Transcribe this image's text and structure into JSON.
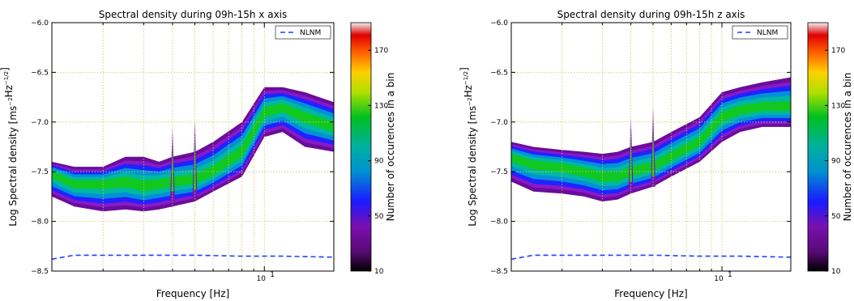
{
  "panels": [
    {
      "title": "Spectral density during 09h-15h x axis",
      "xlabel": "Frequency [Hz]",
      "ylabel": "Log Spectral density [ms⁻²Hz⁻¹ᐟ²]",
      "ylabel_plain": "Log Spectral density [ms",
      "ylabel_sup1": "−2",
      "ylabel_mid": "Hz",
      "ylabel_sup2": "−1/2",
      "ylabel_end": "]",
      "xtick_label": "10",
      "xtick_exp": "1",
      "colorbar_label": "Number of occurences in a bin"
    },
    {
      "title": "Spectral density during 09h-15h z axis",
      "xlabel": "Frequency [Hz]",
      "ylabel": "Log Spectral density [ms⁻²Hz⁻¹ᐟ²]",
      "ylabel_plain": "Log Spectral density [ms",
      "ylabel_sup1": "−2",
      "ylabel_mid": "Hz",
      "ylabel_sup2": "−1/2",
      "ylabel_end": "]",
      "xtick_label": "10",
      "xtick_exp": "1",
      "colorbar_label": "Number of occurences in a bin"
    }
  ],
  "legend_label": "NLNM",
  "ytick_labels": [
    "−6.0",
    "−6.5",
    "−7.0",
    "−7.5",
    "−8.0",
    "−8.5"
  ],
  "colorbar_ticks": [
    "170",
    "130",
    "90",
    "50",
    "10"
  ],
  "colors": {
    "nlnm": "#1f3fff",
    "grid": "#c8c85a"
  },
  "chart_data": [
    {
      "type": "heatmap",
      "title": "Spectral density during 09h-15h x axis",
      "xlabel": "Frequency [Hz]",
      "ylabel": "Log Spectral density [ms-2Hz-1/2]",
      "x_scale": "log",
      "xlim": [
        1.2,
        20
      ],
      "ylim": [
        -8.5,
        -6.0
      ],
      "yticks": [
        -6.0,
        -6.5,
        -7.0,
        -7.5,
        -8.0,
        -8.5
      ],
      "xticks": [
        10
      ],
      "colorbar": {
        "label": "Number of occurences in a bin",
        "range": [
          10,
          190
        ],
        "ticks": [
          10,
          50,
          90,
          130,
          170
        ]
      },
      "grid": true,
      "legend": {
        "entries": [
          "NLNM"
        ],
        "position": "top-right"
      },
      "series": [
        {
          "name": "NLNM",
          "style": "dashed",
          "x": [
            1.2,
            1.5,
            2,
            3,
            5,
            8,
            12,
            20
          ],
          "y": [
            -8.38,
            -8.34,
            -8.34,
            -8.34,
            -8.34,
            -8.35,
            -8.35,
            -8.36
          ]
        }
      ],
      "density_band": {
        "x": [
          1.2,
          1.5,
          2,
          2.5,
          3,
          3.5,
          4,
          5,
          6,
          8,
          10,
          12,
          15,
          20
        ],
        "mode_y": [
          -7.52,
          -7.62,
          -7.62,
          -7.6,
          -7.65,
          -7.62,
          -7.6,
          -7.58,
          -7.5,
          -7.3,
          -6.9,
          -6.85,
          -6.95,
          -7.05
        ],
        "lower_y": [
          -7.75,
          -7.85,
          -7.9,
          -7.88,
          -7.9,
          -7.88,
          -7.85,
          -7.8,
          -7.7,
          -7.55,
          -7.15,
          -7.1,
          -7.25,
          -7.3
        ],
        "upper_y": [
          -7.4,
          -7.45,
          -7.45,
          -7.35,
          -7.35,
          -7.4,
          -7.35,
          -7.3,
          -7.2,
          -7.0,
          -6.65,
          -6.65,
          -6.7,
          -6.8
        ]
      }
    },
    {
      "type": "heatmap",
      "title": "Spectral density during 09h-15h z axis",
      "xlabel": "Frequency [Hz]",
      "ylabel": "Log Spectral density [ms-2Hz-1/2]",
      "x_scale": "log",
      "xlim": [
        1.2,
        20
      ],
      "ylim": [
        -8.5,
        -6.0
      ],
      "yticks": [
        -6.0,
        -6.5,
        -7.0,
        -7.5,
        -8.0,
        -8.5
      ],
      "xticks": [
        10
      ],
      "colorbar": {
        "label": "Number of occurences in a bin",
        "range": [
          10,
          190
        ],
        "ticks": [
          10,
          50,
          90,
          130,
          170
        ]
      },
      "grid": true,
      "legend": {
        "entries": [
          "NLNM"
        ],
        "position": "top-right"
      },
      "series": [
        {
          "name": "NLNM",
          "style": "dashed",
          "x": [
            1.2,
            1.5,
            2,
            3,
            5,
            8,
            12,
            20
          ],
          "y": [
            -8.38,
            -8.34,
            -8.34,
            -8.34,
            -8.34,
            -8.35,
            -8.35,
            -8.36
          ]
        }
      ],
      "density_band": {
        "x": [
          1.2,
          1.5,
          2,
          2.5,
          3,
          3.5,
          4,
          5,
          6,
          8,
          10,
          12,
          15,
          20
        ],
        "mode_y": [
          -7.35,
          -7.42,
          -7.45,
          -7.5,
          -7.55,
          -7.55,
          -7.5,
          -7.45,
          -7.35,
          -7.2,
          -6.95,
          -6.88,
          -6.85,
          -6.85
        ],
        "lower_y": [
          -7.6,
          -7.7,
          -7.72,
          -7.75,
          -7.8,
          -7.78,
          -7.72,
          -7.65,
          -7.55,
          -7.4,
          -7.2,
          -7.1,
          -7.05,
          -7.05
        ],
        "upper_y": [
          -7.2,
          -7.25,
          -7.28,
          -7.3,
          -7.32,
          -7.3,
          -7.25,
          -7.2,
          -7.1,
          -6.95,
          -6.7,
          -6.65,
          -6.6,
          -6.55
        ]
      }
    }
  ]
}
